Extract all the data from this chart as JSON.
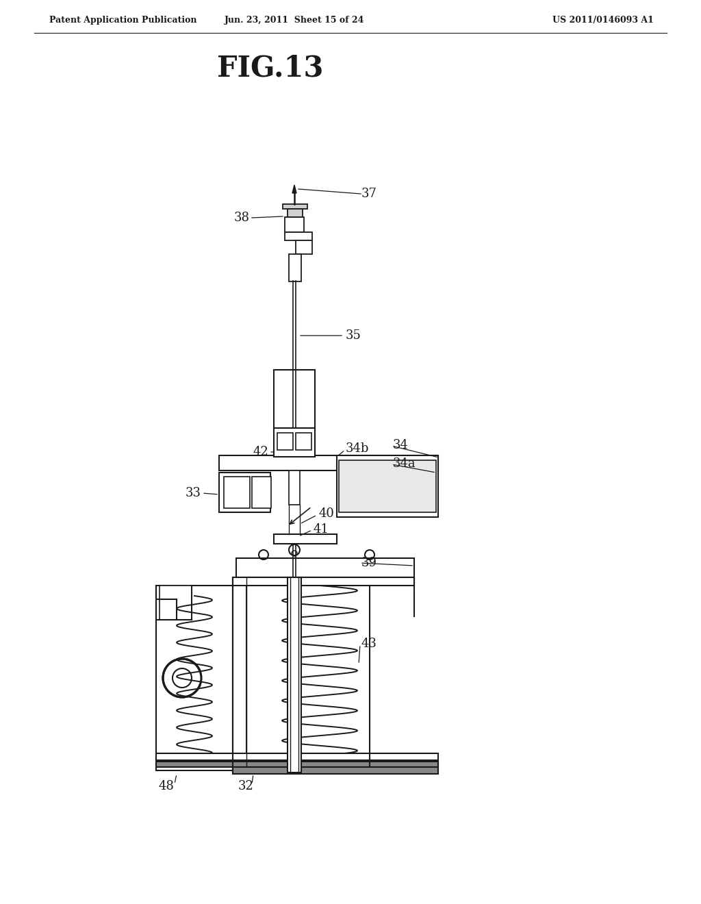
{
  "bg_color": "#ffffff",
  "line_color": "#1a1a1a",
  "header_left": "Patent Application Publication",
  "header_mid": "Jun. 23, 2011  Sheet 15 of 24",
  "header_right": "US 2011/0146093 A1",
  "fig_title": "FIG.13",
  "header_fontsize": 9,
  "title_fontsize": 30,
  "label_fontsize": 13
}
